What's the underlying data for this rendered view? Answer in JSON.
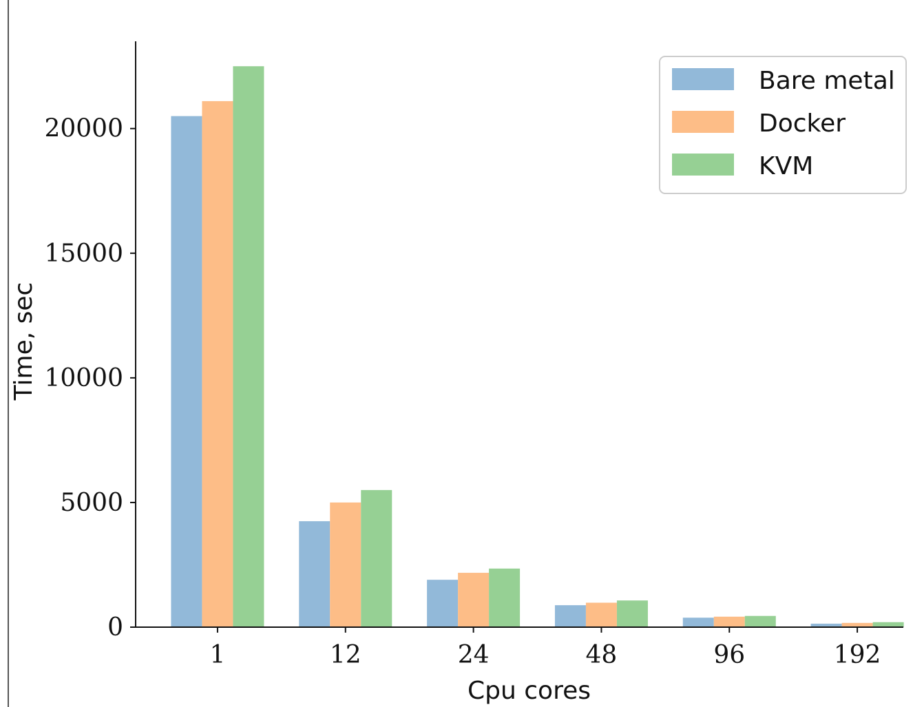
{
  "chart_data": {
    "type": "bar",
    "categories": [
      "1",
      "12",
      "24",
      "48",
      "96",
      "192"
    ],
    "series": [
      {
        "name": "Bare metal",
        "color": "#92b9d9",
        "values": [
          20500,
          4250,
          1900,
          880,
          380,
          140
        ]
      },
      {
        "name": "Docker",
        "color": "#fdbd87",
        "values": [
          21100,
          5000,
          2180,
          980,
          420,
          170
        ]
      },
      {
        "name": "KVM",
        "color": "#96d094",
        "values": [
          22500,
          5500,
          2350,
          1070,
          450,
          200
        ]
      }
    ],
    "title": "",
    "xlabel": "Cpu cores",
    "ylabel": "Time, sec",
    "ylim": [
      0,
      23500
    ],
    "yticks": [
      0,
      5000,
      10000,
      15000,
      20000
    ],
    "grid": false,
    "legend_position": "top-right"
  }
}
